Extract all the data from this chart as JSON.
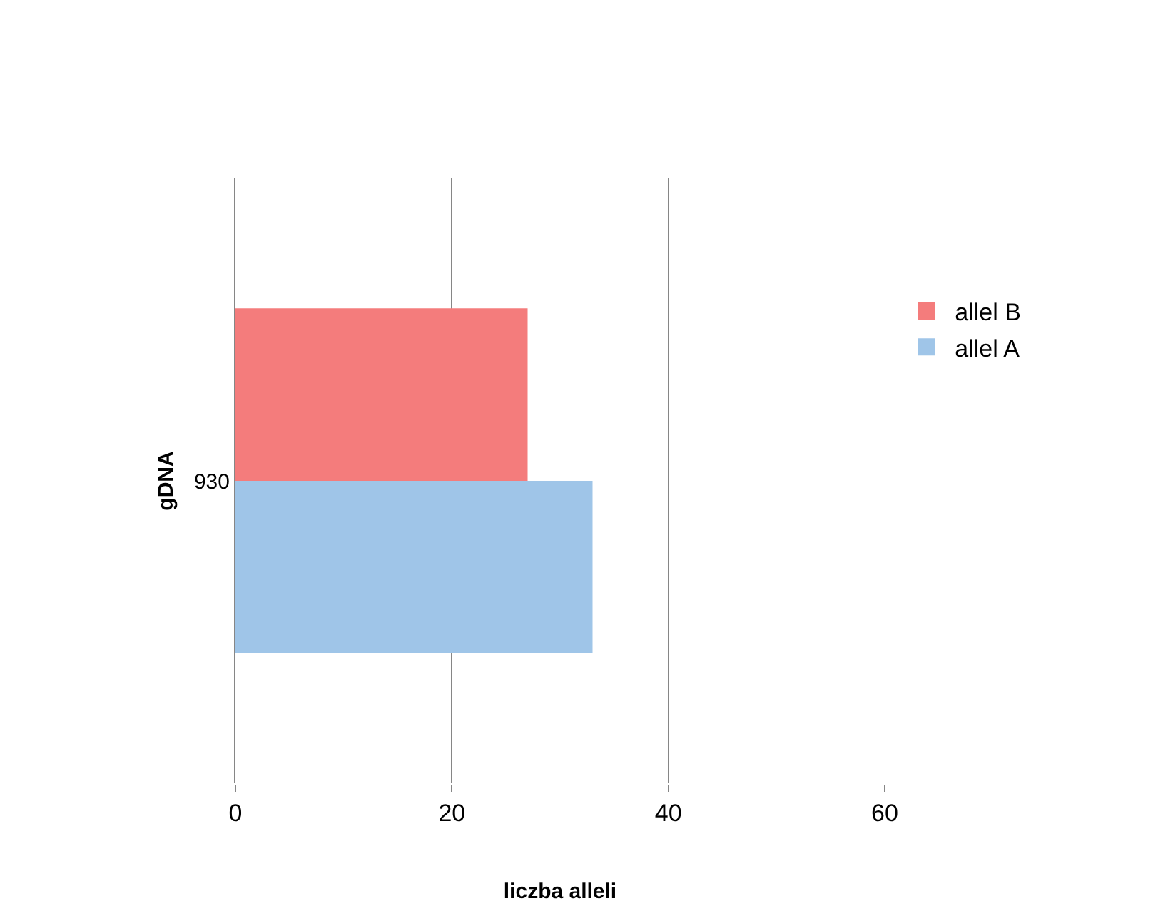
{
  "chart_data": {
    "type": "bar",
    "orientation": "horizontal",
    "xlabel": "liczba alleli",
    "ylabel": "gDNA",
    "categories": [
      "930"
    ],
    "series": [
      {
        "name": "allel A",
        "color": "#9fc5e8",
        "values": [
          33
        ]
      },
      {
        "name": "allel B",
        "color": "#f47c7c",
        "values": [
          27
        ]
      }
    ],
    "xlim": [
      0,
      60
    ],
    "xticks": [
      0,
      20,
      40,
      60
    ],
    "grid": "x",
    "legend": "right"
  }
}
